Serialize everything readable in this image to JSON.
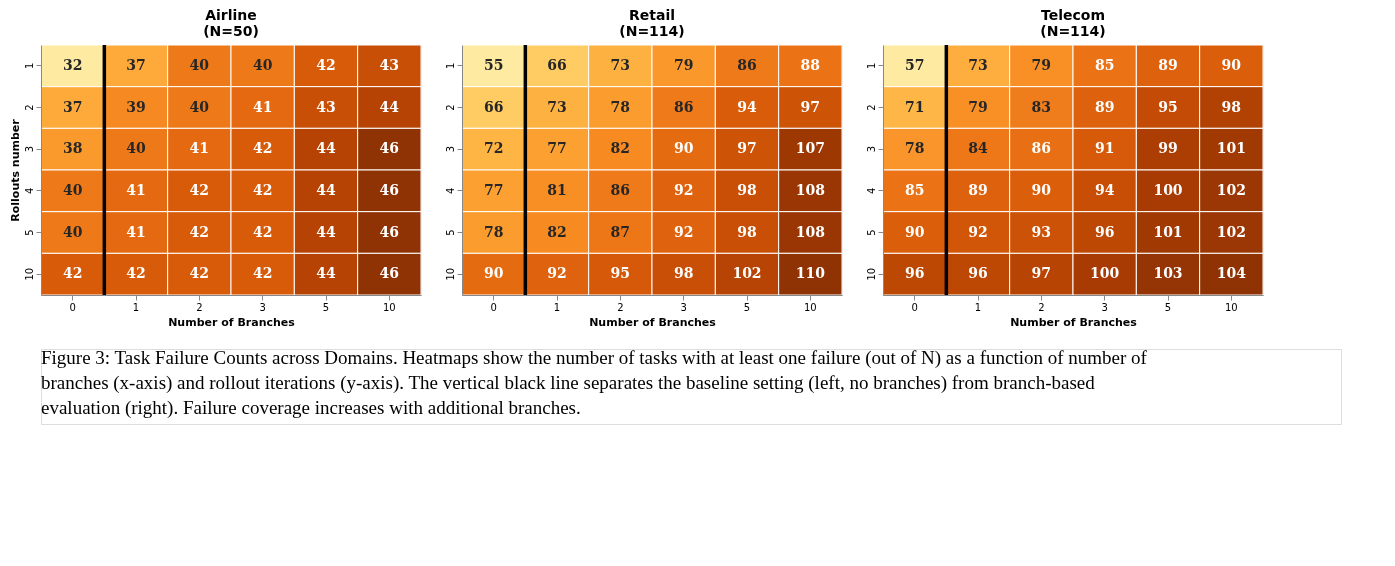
{
  "chart_data": [
    {
      "type": "heatmap",
      "title": [
        "Airline",
        "(N=50)"
      ],
      "xlabel": "Number of Branches",
      "ylabel": "Rollouts number",
      "categories": [
        "0",
        "1",
        "2",
        "3",
        "5",
        "10"
      ],
      "y_categories": [
        "1",
        "2",
        "3",
        "4",
        "5",
        "10"
      ],
      "cells": [
        [
          32,
          37,
          40,
          40,
          42,
          43
        ],
        [
          37,
          39,
          40,
          41,
          43,
          44
        ],
        [
          38,
          40,
          41,
          42,
          44,
          46
        ],
        [
          40,
          41,
          42,
          42,
          44,
          46
        ],
        [
          40,
          41,
          42,
          42,
          44,
          46
        ],
        [
          42,
          42,
          42,
          42,
          44,
          46
        ]
      ],
      "data_labels": true,
      "annotations": [
        "Figure 3: Task Failure Counts across Domains. Heatmaps show the number of tasks with at least one failure (out of N) as a function of number of branches (x-axis) and rollout iterations (y-axis). The vertical black line separates the baseline setting (left, no branches) from branch-based evaluation (right). Failure coverage increases with additional branches."
      ]
    },
    {
      "type": "heatmap",
      "title": [
        "Retail",
        "(N=114)"
      ],
      "xlabel": "Number of Branches",
      "categories": [
        "0",
        "1",
        "2",
        "3",
        "5",
        "10"
      ],
      "y_categories": [
        "1",
        "2",
        "3",
        "4",
        "5",
        "10"
      ],
      "cells": [
        [
          55,
          66,
          73,
          79,
          86,
          88
        ],
        [
          66,
          73,
          78,
          86,
          94,
          97
        ],
        [
          72,
          77,
          82,
          90,
          97,
          107
        ],
        [
          77,
          81,
          86,
          92,
          98,
          108
        ],
        [
          78,
          82,
          87,
          92,
          98,
          108
        ],
        [
          90,
          92,
          95,
          98,
          102,
          110
        ]
      ],
      "data_labels": true
    },
    {
      "type": "heatmap",
      "title": [
        "Telecom",
        "(N=114)"
      ],
      "xlabel": "Number of Branches",
      "categories": [
        "0",
        "1",
        "2",
        "3",
        "5",
        "10"
      ],
      "y_categories": [
        "1",
        "2",
        "3",
        "4",
        "5",
        "10"
      ],
      "cells": [
        [
          57,
          73,
          79,
          85,
          89,
          90
        ],
        [
          71,
          79,
          83,
          89,
          95,
          98
        ],
        [
          78,
          84,
          86,
          91,
          99,
          101
        ],
        [
          85,
          89,
          90,
          94,
          100,
          102
        ],
        [
          90,
          92,
          93,
          96,
          101,
          102
        ],
        [
          96,
          96,
          97,
          100,
          103,
          104
        ]
      ],
      "data_labels": true
    }
  ]
}
